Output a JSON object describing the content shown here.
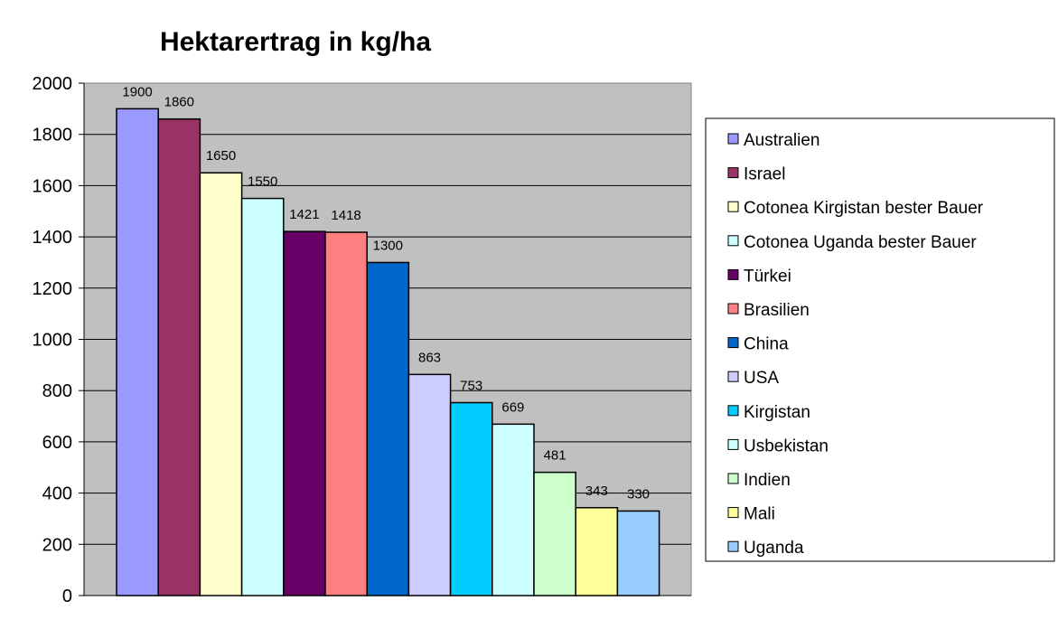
{
  "chart_data": {
    "type": "bar",
    "title": "Hektarertrag in kg/ha",
    "xlabel": "",
    "ylabel": "",
    "ylim": [
      0,
      2000
    ],
    "yticks": [
      0,
      200,
      400,
      600,
      800,
      1000,
      1200,
      1400,
      1600,
      1800,
      2000
    ],
    "grid": true,
    "legend_position": "right",
    "plot_background": "#c0c0c0",
    "series": [
      {
        "name": "Australien",
        "value": 1900,
        "label": "1900",
        "color": "#9999ff"
      },
      {
        "name": "Israel",
        "value": 1860,
        "label": "1860",
        "color": "#993366"
      },
      {
        "name": "Cotonea Kirgistan bester Bauer",
        "value": 1650,
        "label": "1650",
        "color": "#ffffcc"
      },
      {
        "name": "Cotonea Uganda bester Bauer",
        "value": 1550,
        "label": "1550",
        "color": "#ccffff"
      },
      {
        "name": "Türkei",
        "value": 1421,
        "label": "1421",
        "color": "#660066"
      },
      {
        "name": "Brasilien",
        "value": 1418,
        "label": "1418",
        "color": "#ff8080"
      },
      {
        "name": "China",
        "value": 1300,
        "label": "1300",
        "color": "#0066cc"
      },
      {
        "name": "USA",
        "value": 863,
        "label": "863",
        "color": "#ccccff"
      },
      {
        "name": "Kirgistan",
        "value": 753,
        "label": "753",
        "color": "#00ccff"
      },
      {
        "name": "Usbekistan",
        "value": 669,
        "label": "669",
        "color": "#ccffff"
      },
      {
        "name": "Indien",
        "value": 481,
        "label": "481",
        "color": "#ccffcc"
      },
      {
        "name": "Mali",
        "value": 343,
        "label": "343",
        "color": "#ffff99"
      },
      {
        "name": "Uganda",
        "value": 330,
        "label": "330",
        "color": "#99ccff"
      }
    ]
  }
}
